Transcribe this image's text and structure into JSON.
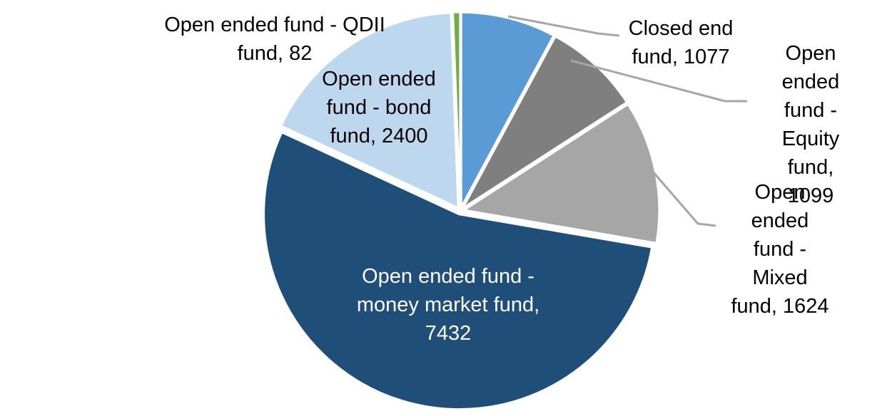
{
  "chart_data": {
    "type": "pie",
    "title": "",
    "start_angle_deg": 0,
    "direction": "clockwise",
    "total": 13714,
    "background": "#FFFFFF",
    "leader_line_color": "#A6A6A6",
    "slices": [
      {
        "label": "Closed end fund",
        "value": 1077,
        "color": "#5B9BD5",
        "label_text": "Closed end\nfund, 1077",
        "label_placement": "outside",
        "text_color": "#000000"
      },
      {
        "label": "Open ended fund - Equity fund",
        "value": 1099,
        "color": "#7F7F7F",
        "label_text": "Open ended\nfund - Equity\nfund, 1099",
        "label_placement": "outside",
        "text_color": "#000000"
      },
      {
        "label": "Open ended fund - Mixed fund",
        "value": 1624,
        "color": "#A6A6A6",
        "label_text": "Open ended\nfund - Mixed\nfund, 1624",
        "label_placement": "outside",
        "text_color": "#000000"
      },
      {
        "label": "Open ended fund - money market fund",
        "value": 7432,
        "color": "#1F4E79",
        "label_text": "Open ended fund -\nmoney market fund,\n7432",
        "label_placement": "inside",
        "text_color": "#FFFFFF"
      },
      {
        "label": "Open ended fund - bond fund",
        "value": 2400,
        "color": "#BDD7EE",
        "label_text": "Open ended\nfund - bond\nfund, 2400",
        "label_placement": "inside",
        "text_color": "#000000"
      },
      {
        "label": "Open ended fund - QDII fund",
        "value": 82,
        "color": "#70AD47",
        "label_text": "Open ended fund - QDII\nfund, 82",
        "label_placement": "outside",
        "text_color": "#000000"
      }
    ]
  }
}
